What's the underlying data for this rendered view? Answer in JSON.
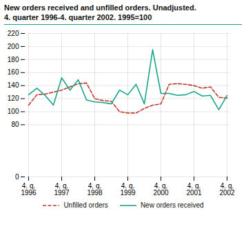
{
  "chart_data": {
    "type": "line",
    "title": "New orders received and unfilled orders. Unadjusted.",
    "subtitle": "4. quarter 1996-4. quarter 2002. 1995=100",
    "categories": [
      "4. q.\n1996",
      null,
      null,
      null,
      "4. q.\n1997",
      null,
      null,
      null,
      "4. q.\n1998",
      null,
      null,
      null,
      "4. q.\n1999",
      null,
      null,
      null,
      "4. q.\n2000",
      null,
      null,
      null,
      "4. q.\n2001",
      null,
      null,
      null,
      "4. q.\n2002"
    ],
    "series": [
      {
        "name": "Unfilled orders",
        "color": "#c0392b",
        "line_style": "dashed",
        "values": [
          110,
          126,
          127,
          130,
          133,
          138,
          143,
          144,
          120,
          117,
          116,
          100,
          98,
          98,
          105,
          110,
          112,
          142,
          143,
          142,
          140,
          136,
          138,
          122,
          121
        ]
      },
      {
        "name": "New orders received",
        "color": "#17a589",
        "line_style": "solid",
        "values": [
          126,
          136,
          125,
          110,
          152,
          133,
          149,
          118,
          115,
          114,
          112,
          133,
          126,
          142,
          112,
          195,
          128,
          128,
          125,
          126,
          131,
          124,
          125,
          103,
          125
        ]
      }
    ],
    "ylim": [
      0,
      220
    ],
    "yticks": [
      0,
      80,
      100,
      120,
      140,
      160,
      180,
      200,
      220
    ],
    "grid": true,
    "legend": "bottom"
  }
}
